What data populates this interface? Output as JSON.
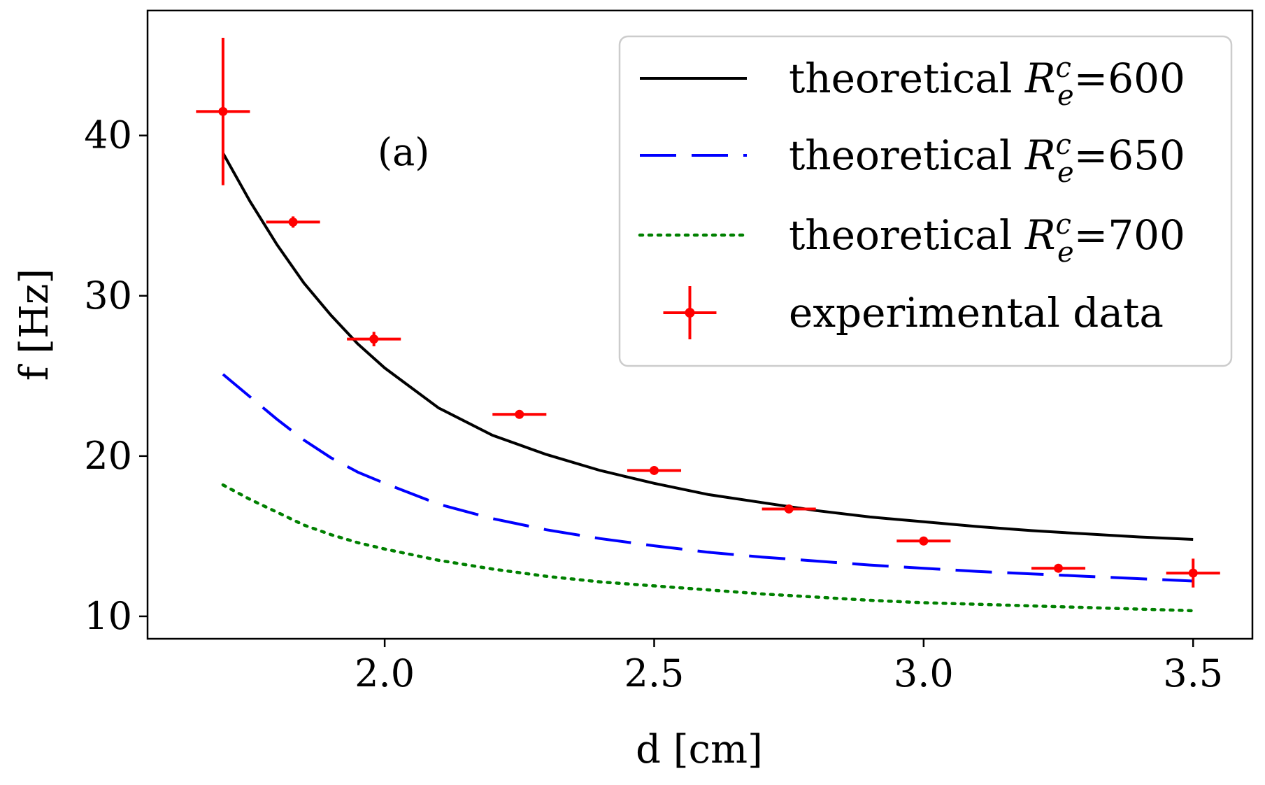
{
  "chart_data": {
    "type": "line",
    "title": "",
    "xlabel": "d [cm]",
    "ylabel": "f [Hz]",
    "xlim": [
      1.56,
      3.61
    ],
    "ylim": [
      8.6,
      47.8
    ],
    "grid": false,
    "annotation": "(a)",
    "x_ticks": [
      2.0,
      2.5,
      3.0,
      3.5
    ],
    "x_tick_labels": [
      "2.0",
      "2.5",
      "3.0",
      "3.5"
    ],
    "y_ticks": [
      10,
      20,
      30,
      40
    ],
    "y_tick_labels": [
      "10",
      "20",
      "30",
      "40"
    ],
    "legend_position": "top-right",
    "series": [
      {
        "name": "theoretical",
        "legend_label": "theoretical",
        "subscript": "e",
        "superscript": "c",
        "value_label": "=600",
        "style": "solid",
        "color": "#000000",
        "x": [
          1.7,
          1.75,
          1.8,
          1.85,
          1.9,
          1.95,
          2.0,
          2.1,
          2.2,
          2.3,
          2.4,
          2.5,
          2.6,
          2.7,
          2.8,
          2.9,
          3.0,
          3.1,
          3.2,
          3.3,
          3.4,
          3.5
        ],
        "y": [
          38.9,
          35.9,
          33.2,
          30.8,
          28.8,
          27.0,
          25.5,
          23.0,
          21.3,
          20.1,
          19.1,
          18.3,
          17.6,
          17.1,
          16.6,
          16.2,
          15.9,
          15.6,
          15.35,
          15.15,
          14.95,
          14.8
        ]
      },
      {
        "name": "theoretical",
        "legend_label": "theoretical",
        "subscript": "e",
        "superscript": "c",
        "value_label": "=650",
        "style": "dashed",
        "color": "#0000ff",
        "x": [
          1.7,
          1.75,
          1.8,
          1.85,
          1.9,
          1.95,
          2.0,
          2.1,
          2.2,
          2.3,
          2.4,
          2.5,
          2.6,
          2.7,
          2.8,
          2.9,
          3.0,
          3.1,
          3.2,
          3.3,
          3.4,
          3.5
        ],
        "y": [
          25.1,
          23.7,
          22.3,
          21.0,
          19.9,
          19.0,
          18.3,
          17.0,
          16.1,
          15.4,
          14.85,
          14.4,
          14.0,
          13.7,
          13.45,
          13.2,
          13.0,
          12.8,
          12.65,
          12.5,
          12.35,
          12.2
        ]
      },
      {
        "name": "theoretical",
        "legend_label": "theoretical",
        "subscript": "e",
        "superscript": "c",
        "value_label": "=700",
        "style": "dotted",
        "color": "#008000",
        "x": [
          1.7,
          1.75,
          1.8,
          1.85,
          1.9,
          1.95,
          2.0,
          2.1,
          2.2,
          2.3,
          2.4,
          2.5,
          2.6,
          2.7,
          2.8,
          2.9,
          3.0,
          3.1,
          3.2,
          3.3,
          3.4,
          3.5
        ],
        "y": [
          18.2,
          17.3,
          16.5,
          15.7,
          15.1,
          14.6,
          14.2,
          13.5,
          12.95,
          12.5,
          12.15,
          11.9,
          11.65,
          11.4,
          11.2,
          11.0,
          10.85,
          10.75,
          10.65,
          10.55,
          10.45,
          10.35
        ]
      }
    ],
    "experimental": {
      "name": "experimental data",
      "legend_label": "experimental data",
      "color": "#ff0000",
      "points": [
        {
          "x": 1.7,
          "y": 41.5,
          "xerr": 0.05,
          "yerr": 4.6
        },
        {
          "x": 1.83,
          "y": 34.6,
          "xerr": 0.05,
          "yerr": 0.35
        },
        {
          "x": 1.98,
          "y": 27.3,
          "xerr": 0.05,
          "yerr": 0.45
        },
        {
          "x": 2.25,
          "y": 22.6,
          "xerr": 0.05,
          "yerr": 0.15
        },
        {
          "x": 2.5,
          "y": 19.1,
          "xerr": 0.05,
          "yerr": 0.15
        },
        {
          "x": 2.75,
          "y": 16.7,
          "xerr": 0.05,
          "yerr": 0.15
        },
        {
          "x": 3.0,
          "y": 14.7,
          "xerr": 0.05,
          "yerr": 0.15
        },
        {
          "x": 3.25,
          "y": 13.0,
          "xerr": 0.05,
          "yerr": 0.15
        },
        {
          "x": 3.5,
          "y": 12.7,
          "xerr": 0.05,
          "yerr": 0.9
        }
      ]
    }
  }
}
